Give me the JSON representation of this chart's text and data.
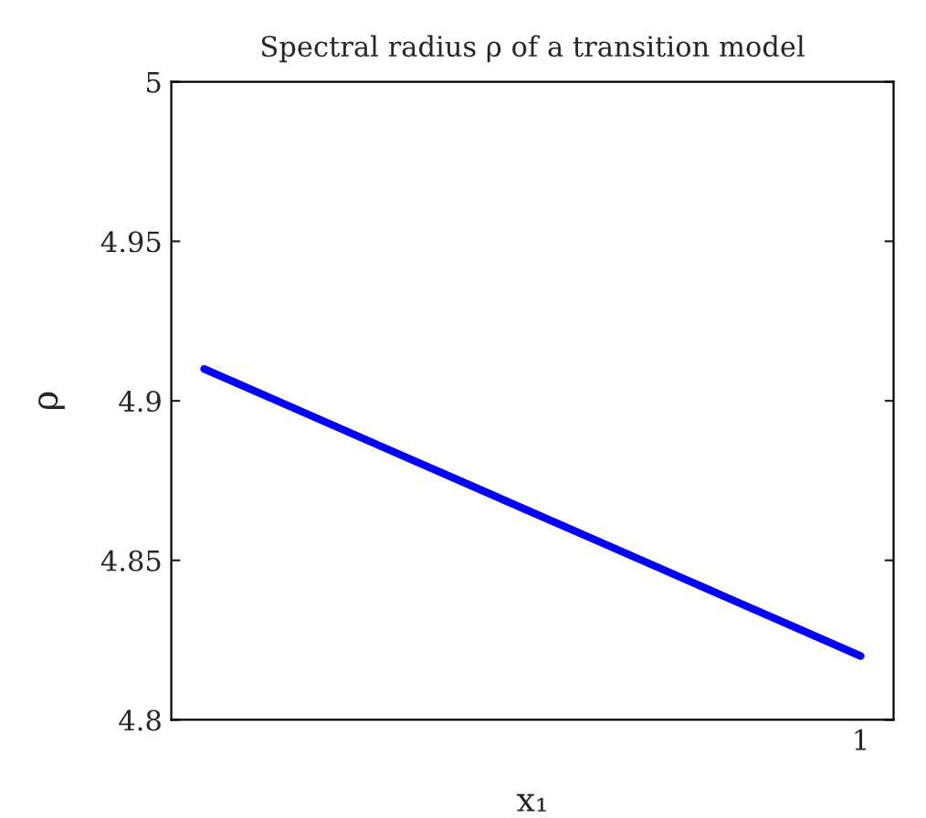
{
  "chart_data": {
    "type": "line",
    "title": "Spectral radius ρ of a transition model",
    "xlabel": "x₁",
    "ylabel": "ρ",
    "categories": [
      null,
      null,
      null,
      null,
      null,
      null,
      null,
      null,
      null,
      null,
      "1"
    ],
    "series": [
      {
        "color": "#0000ff",
        "values": [
          4.91,
          4.901,
          4.892,
          4.883,
          4.874,
          4.865,
          4.856,
          4.847,
          4.838,
          4.829,
          4.82
        ]
      }
    ],
    "ylim": [
      4.8,
      5
    ],
    "yticks": [
      4.8,
      4.85,
      4.9,
      4.95,
      5
    ],
    "grid": false
  }
}
